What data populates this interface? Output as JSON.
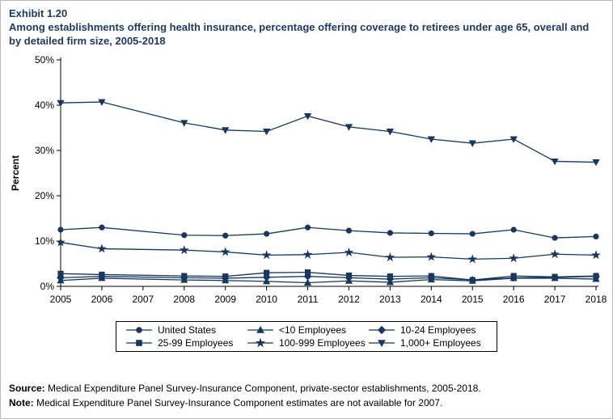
{
  "header": {
    "exhibit": "Exhibit 1.20",
    "title": "Among establishments offering health insurance, percentage offering coverage to retirees under age 65, overall and by detailed firm size, 2005-2018"
  },
  "chart_data": {
    "type": "line",
    "color": "#17375e",
    "ylabel": "Percent",
    "ylim": [
      0,
      50
    ],
    "yticks": [
      "0%",
      "10%",
      "20%",
      "30%",
      "40%",
      "50%"
    ],
    "x_ticks": [
      2005,
      2006,
      2007,
      2008,
      2009,
      2010,
      2011,
      2012,
      2013,
      2014,
      2015,
      2016,
      2017,
      2018
    ],
    "x": [
      2005,
      2006,
      2008,
      2009,
      2010,
      2011,
      2012,
      2013,
      2014,
      2015,
      2016,
      2017,
      2018
    ],
    "note": "No data for 2007; lines connect 2006 to 2008 directly",
    "series": [
      {
        "name": "United States",
        "marker": "circle",
        "values": [
          12.5,
          13.0,
          11.3,
          11.2,
          11.6,
          13.0,
          12.3,
          11.8,
          11.7,
          11.6,
          12.5,
          10.7,
          11.0
        ]
      },
      {
        "name": "<10 Employees",
        "marker": "triangle-up",
        "values": [
          1.3,
          1.8,
          1.4,
          1.3,
          1.1,
          0.8,
          1.2,
          0.9,
          1.5,
          1.2,
          1.8,
          1.8,
          1.6
        ]
      },
      {
        "name": "10-24 Employees",
        "marker": "diamond",
        "values": [
          1.9,
          2.2,
          1.9,
          1.8,
          2.0,
          2.2,
          1.9,
          1.6,
          1.9,
          1.4,
          1.9,
          2.0,
          2.2
        ]
      },
      {
        "name": "25-99 Employees",
        "marker": "square",
        "values": [
          2.8,
          2.6,
          2.3,
          2.2,
          3.0,
          3.1,
          2.4,
          2.2,
          2.3,
          1.4,
          2.3,
          2.1,
          2.3
        ]
      },
      {
        "name": "100-999 Employees",
        "marker": "star",
        "values": [
          9.7,
          8.3,
          8.0,
          7.6,
          6.9,
          7.0,
          7.5,
          6.4,
          6.5,
          6.0,
          6.2,
          7.1,
          6.9
        ]
      },
      {
        "name": "1,000+ Employees",
        "marker": "triangle-down",
        "values": [
          40.5,
          40.7,
          36.1,
          34.5,
          34.2,
          37.6,
          35.2,
          34.2,
          32.5,
          31.6,
          32.5,
          27.6,
          27.4
        ]
      }
    ]
  },
  "footer": {
    "source_label": "Source:",
    "source_text": "Medical Expenditure Panel Survey-Insurance Component, private-sector establishments, 2005-2018.",
    "note_label": "Note:",
    "note_text": "Medical Expenditure Panel Survey-Insurance Component estimates are not available for 2007."
  }
}
